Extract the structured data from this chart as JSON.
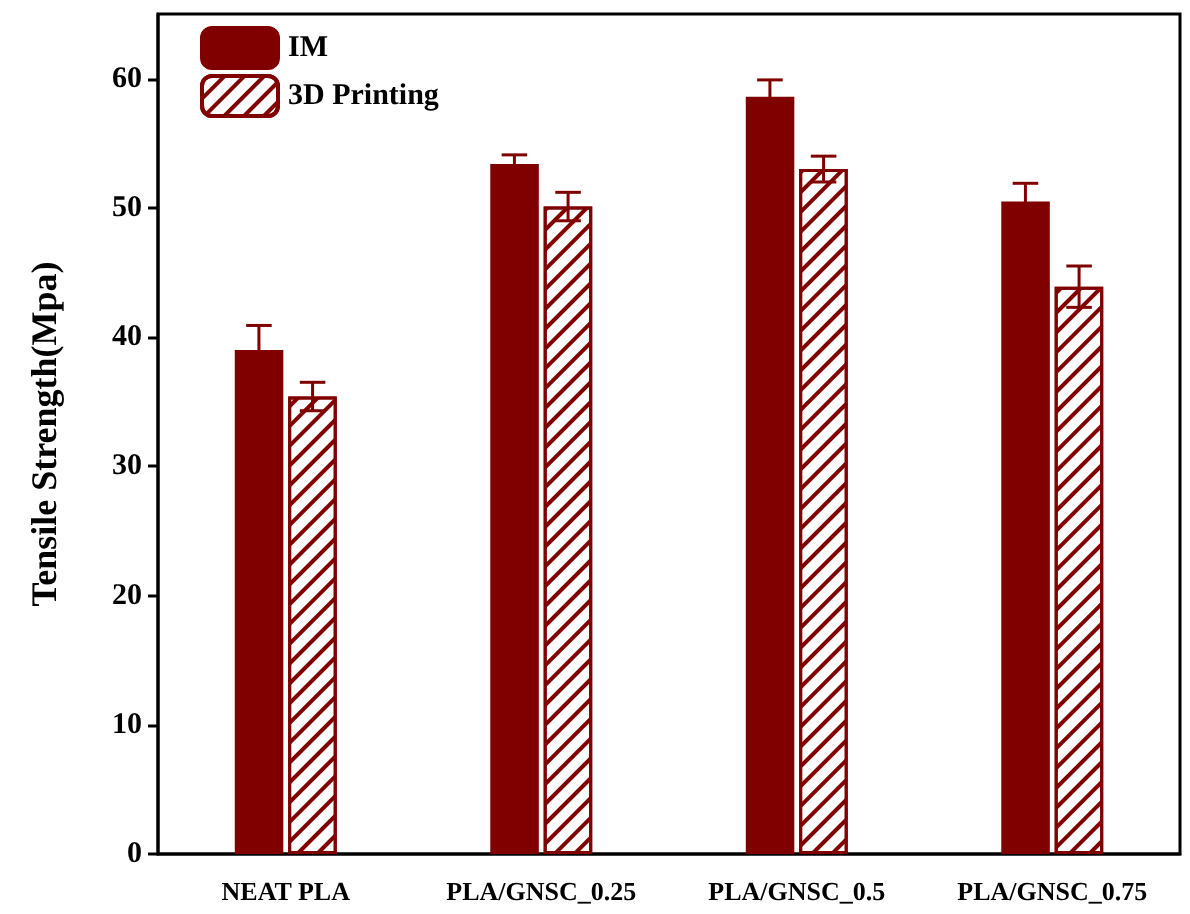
{
  "chart_data": {
    "type": "bar",
    "ylabel": "Tensile Strength(Mpa)",
    "categories": [
      "NEAT PLA",
      "PLA/GNSC_0.25",
      "PLA/GNSC_0.5",
      "PLA/GNSC_0.75"
    ],
    "series": [
      {
        "name": "IM",
        "color": "#800000",
        "values": [
          39.0,
          53.4,
          58.6,
          50.5
        ],
        "errors": [
          1.9,
          0.7,
          1.3,
          1.4
        ]
      },
      {
        "name": "3D Printing",
        "color": "#800000",
        "values": [
          35.4,
          50.1,
          53.0,
          43.9
        ],
        "errors": [
          1.1,
          1.1,
          1.0,
          1.6
        ]
      }
    ],
    "ylim": [
      0,
      65
    ],
    "yticks": [
      0,
      10,
      20,
      30,
      40,
      50,
      60
    ],
    "grid": false,
    "legend": "top left"
  }
}
